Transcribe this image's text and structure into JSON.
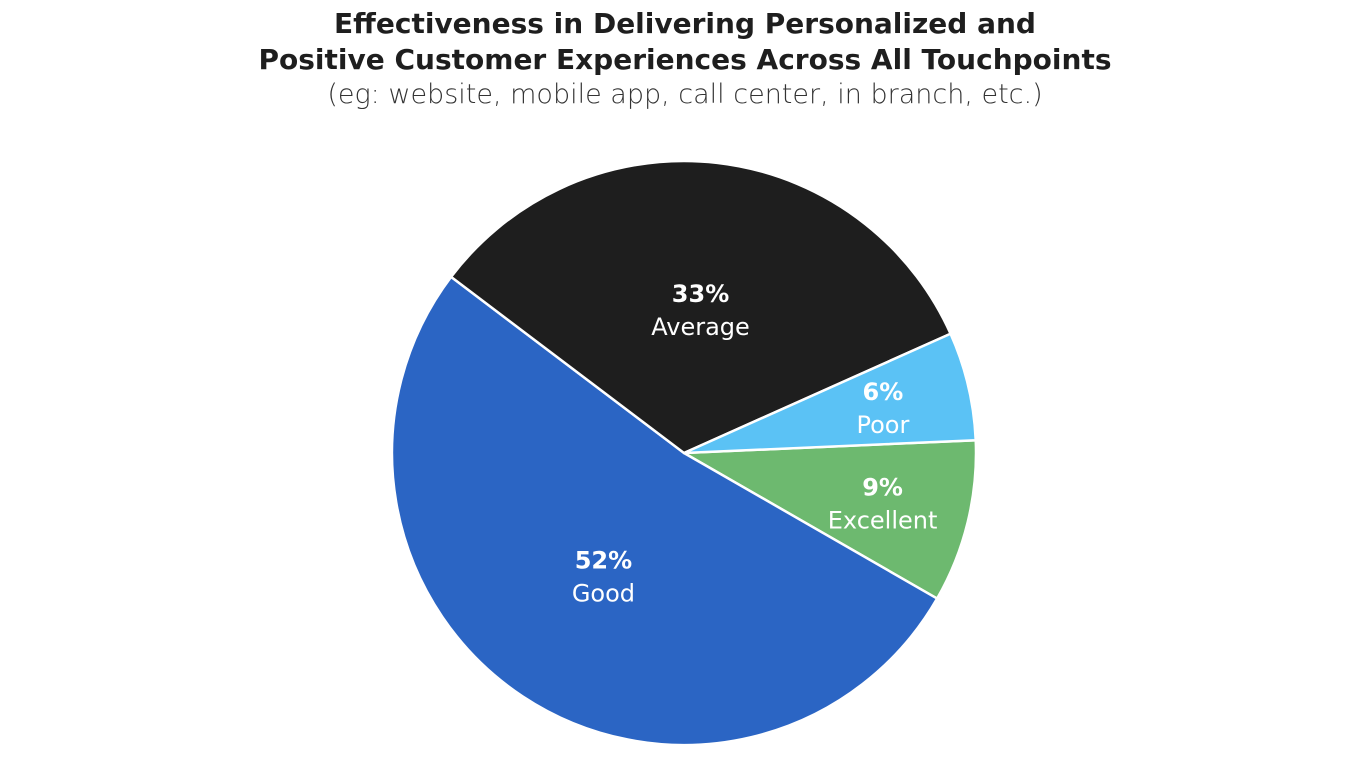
{
  "chart_data": {
    "type": "pie",
    "title_line1": "Effectiveness in Delivering Personalized and",
    "title_line2": "Positive Customer Experiences Across All Touchpoints",
    "subtitle": "(eg: website, mobile app, call center, in branch, etc.)",
    "slices": [
      {
        "label": "Excellent",
        "value": 9,
        "display": "9%",
        "color": "#6db96f"
      },
      {
        "label": "Good",
        "value": 52,
        "display": "52%",
        "color": "#2b65c4"
      },
      {
        "label": "Average",
        "value": 33,
        "display": "33%",
        "color": "#1e1e1e"
      },
      {
        "label": "Poor",
        "value": 6,
        "display": "6%",
        "color": "#5bc2f5"
      }
    ]
  }
}
